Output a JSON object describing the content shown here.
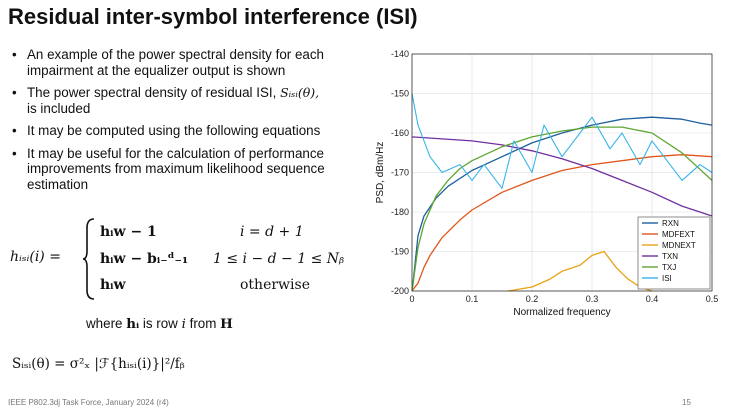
{
  "slide": {
    "title": "Residual inter-symbol interference (ISI)",
    "bullets": {
      "b1": "An example of the power spectral density for each impairment at the equalizer output is shown",
      "b2a": "The power spectral density of residual ISI,",
      "b2sym": "Sᵢₛᵢ(θ),",
      "b2b": "is included",
      "b3": "It may be computed using the following equations",
      "b4": "It may be useful for the calculation of performance improvements from maximum likelihood sequence estimation"
    },
    "equation": {
      "lhs": "hᵢₛᵢ(i) =",
      "cases": [
        {
          "expr": "hᵢw − 1",
          "cond": "i = d + 1"
        },
        {
          "expr": "hᵢw − bᵢ₋ᵈ₋₁",
          "cond": "1 ≤ i − d − 1 ≤ Nᵦ"
        },
        {
          "expr": "hᵢw",
          "cond": "otherwise"
        }
      ],
      "where_a": "where ",
      "where_sym": "hᵢ",
      "where_b": " is row ",
      "where_i": "i",
      "where_c": " from ",
      "where_H": "H",
      "spsd": "Sᵢₛᵢ(θ) = σ²ₓ |ℱ{hᵢₛᵢ(i)}|²/fᵦ"
    },
    "footer": "IEEE P802.3dj Task Force, January 2024 (r4)",
    "page_number": "15"
  },
  "chart_data": {
    "type": "line",
    "xlabel": "Normalized frequency",
    "ylabel": "PSD, dBm/Hz",
    "xlim": [
      0,
      0.5
    ],
    "ylim": [
      -200,
      -140
    ],
    "xticks": [
      "0",
      "0.1",
      "0.2",
      "0.3",
      "0.4",
      "0.5"
    ],
    "yticks": [
      "-140",
      "-150",
      "-160",
      "-170",
      "-180",
      "-190",
      "-200"
    ],
    "grid": true,
    "legend_position": "bottom-right",
    "series": [
      {
        "name": "RXN",
        "color": "#1f5f9e",
        "x": [
          0.001,
          0.01,
          0.02,
          0.04,
          0.06,
          0.1,
          0.15,
          0.2,
          0.25,
          0.3,
          0.35,
          0.4,
          0.45,
          0.48,
          0.5
        ],
        "y": [
          -199,
          -186,
          -181,
          -176.5,
          -173.5,
          -169.5,
          -166,
          -162.5,
          -160,
          -158,
          -156.5,
          -156,
          -156.5,
          -157.5,
          -158
        ]
      },
      {
        "name": "MDFEXT",
        "color": "#e0561a",
        "x": [
          0.0,
          0.01,
          0.02,
          0.03,
          0.05,
          0.08,
          0.1,
          0.15,
          0.2,
          0.25,
          0.3,
          0.35,
          0.4,
          0.45,
          0.5
        ],
        "y": [
          -200,
          -198,
          -194,
          -191,
          -186.5,
          -182,
          -179.5,
          -175,
          -172,
          -169.5,
          -168,
          -167,
          -166,
          -165.5,
          -166
        ]
      },
      {
        "name": "MDNEXT",
        "color": "#e8a317",
        "x": [
          0.16,
          0.2,
          0.23,
          0.25,
          0.28,
          0.3,
          0.32,
          0.34,
          0.36,
          0.38,
          0.4
        ],
        "y": [
          -200,
          -199,
          -197,
          -195,
          -193.5,
          -191,
          -190,
          -194,
          -197,
          -199,
          -200
        ]
      },
      {
        "name": "TXN",
        "color": "#7030a0",
        "x": [
          0.0,
          0.05,
          0.1,
          0.15,
          0.2,
          0.25,
          0.3,
          0.35,
          0.4,
          0.45,
          0.5
        ],
        "y": [
          -161,
          -161.5,
          -162,
          -163,
          -164.5,
          -166.5,
          -169,
          -172,
          -175,
          -178.5,
          -181
        ]
      },
      {
        "name": "TXJ",
        "color": "#5ea62f",
        "x": [
          0.0,
          0.01,
          0.02,
          0.04,
          0.06,
          0.08,
          0.1,
          0.15,
          0.2,
          0.25,
          0.3,
          0.35,
          0.4,
          0.45,
          0.5
        ],
        "y": [
          -200,
          -189,
          -183,
          -176,
          -172,
          -169,
          -167,
          -163.5,
          -161,
          -159.5,
          -158.5,
          -158.5,
          -160,
          -165,
          -172
        ]
      },
      {
        "name": "ISI",
        "color": "#39b4e8",
        "x": [
          0.0,
          0.01,
          0.03,
          0.05,
          0.08,
          0.1,
          0.12,
          0.15,
          0.17,
          0.2,
          0.22,
          0.25,
          0.28,
          0.3,
          0.33,
          0.35,
          0.38,
          0.4,
          0.42,
          0.45,
          0.48,
          0.5
        ],
        "y": [
          -150,
          -158,
          -166,
          -170,
          -168,
          -172,
          -168,
          -174,
          -162,
          -170,
          -158,
          -166,
          -160,
          -156,
          -164,
          -160,
          -168,
          -162,
          -166,
          -172,
          -168,
          -170
        ]
      }
    ]
  }
}
